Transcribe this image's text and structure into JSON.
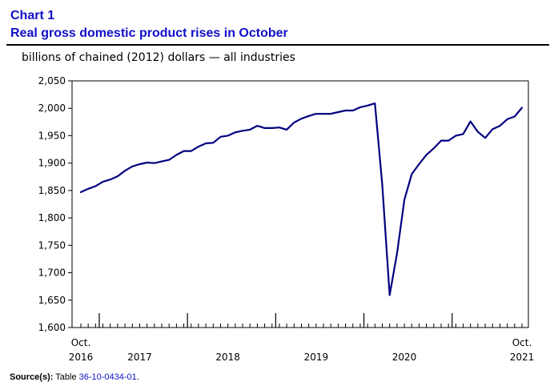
{
  "header": {
    "chart_label": "Chart 1",
    "title": "Real gross domestic product rises in October"
  },
  "units_label": "billions of chained (2012) dollars — all industries",
  "source": {
    "label": "Source(s):",
    "text": "Table",
    "table_id": "36-10-0434-01",
    "suffix": "."
  },
  "colors": {
    "title": "#1010c8",
    "line": "#000080",
    "axis": "#000000"
  },
  "chart_data": {
    "type": "line",
    "title": "Real gross domestic product rises in October",
    "ylabel": "billions of chained (2012) dollars — all industries",
    "xlabel": "",
    "ylim": [
      1600,
      2050
    ],
    "yticks": [
      1600,
      1650,
      1700,
      1750,
      1800,
      1850,
      1900,
      1950,
      2000,
      2050
    ],
    "ytick_labels": [
      "1,600",
      "1,650",
      "1,700",
      "1,750",
      "1,800",
      "1,850",
      "1,900",
      "1,950",
      "2,000",
      "2,050"
    ],
    "grid": false,
    "x_start": "Oct. 2016",
    "x_end": "Oct. 2021",
    "x_period_labels": [
      {
        "line1": "Oct.",
        "line2": "2016",
        "month_index": 0
      },
      {
        "line1": "",
        "line2": "2017",
        "month_index": 8
      },
      {
        "line1": "",
        "line2": "2018",
        "month_index": 20
      },
      {
        "line1": "",
        "line2": "2019",
        "month_index": 32
      },
      {
        "line1": "",
        "line2": "2020",
        "month_index": 44
      },
      {
        "line1": "Oct.",
        "line2": "2021",
        "month_index": 60
      }
    ],
    "year_boundary_month_indices": [
      2.5,
      14.5,
      26.5,
      38.5,
      50.5
    ],
    "series": [
      {
        "name": "Real GDP",
        "values": [
          1847,
          1853,
          1858,
          1866,
          1870,
          1876,
          1886,
          1894,
          1898,
          1901,
          1900,
          1903,
          1906,
          1915,
          1922,
          1922,
          1930,
          1936,
          1937,
          1948,
          1950,
          1956,
          1959,
          1961,
          1968,
          1964,
          1964,
          1965,
          1961,
          1974,
          1981,
          1986,
          1990,
          1990,
          1990,
          1993,
          1996,
          1996,
          2002,
          2005,
          2009,
          1860,
          1659,
          1735,
          1833,
          1880,
          1898,
          1915,
          1927,
          1941,
          1941,
          1950,
          1953,
          1976,
          1957,
          1946,
          1962,
          1968,
          1980,
          1985,
          2001
        ]
      }
    ]
  }
}
